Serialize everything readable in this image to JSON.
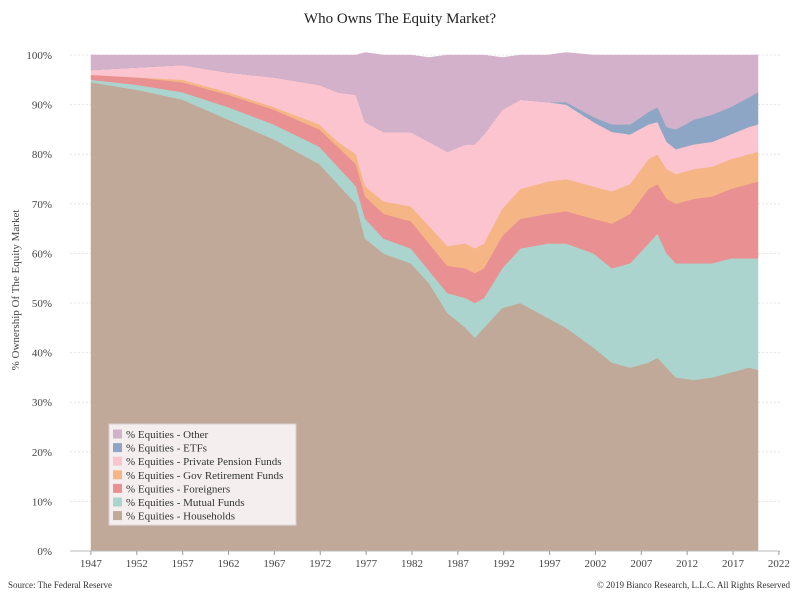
{
  "chart_data": {
    "type": "area",
    "stacked": true,
    "title": "Who Owns The Equity Market?",
    "ylabel": "% Ownership Of The Equity Market",
    "xlabel": "",
    "xlim": [
      1945,
      2022
    ],
    "ylim": [
      0,
      100
    ],
    "x_ticks": [
      "1947",
      "1952",
      "1957",
      "1962",
      "1967",
      "1972",
      "1977",
      "1982",
      "1987",
      "1992",
      "1997",
      "2002",
      "2007",
      "2012",
      "2017",
      "2022"
    ],
    "y_ticks": [
      "0%",
      "10%",
      "20%",
      "30%",
      "40%",
      "50%",
      "60%",
      "70%",
      "80%",
      "90%",
      "100%"
    ],
    "grid": "horizontal",
    "legend_position": "bottom-left",
    "x": [
      1945,
      1950,
      1955,
      1960,
      1965,
      1970,
      1972,
      1974,
      1975,
      1977,
      1980,
      1982,
      1984,
      1986,
      1987,
      1988,
      1990,
      1992,
      1995,
      1997,
      2000,
      2002,
      2004,
      2006,
      2007,
      2008,
      2009,
      2011,
      2013,
      2015,
      2017,
      2018
    ],
    "series": [
      {
        "name": "% Equities - Households",
        "color": "#c1a999",
        "values": [
          94.5,
          93,
          91,
          87,
          83,
          78,
          74,
          70,
          63,
          60,
          58,
          54,
          48,
          45,
          43,
          45,
          49,
          50,
          47,
          45,
          41,
          38,
          37,
          38,
          39,
          37,
          35,
          34.5,
          35,
          36,
          37,
          36.5
        ]
      },
      {
        "name": "% Equities - Mutual Funds",
        "color": "#acd4cf",
        "values": [
          0.5,
          1,
          1.5,
          2.5,
          3,
          3.5,
          3.5,
          3.5,
          4,
          3,
          3,
          2.5,
          4,
          6,
          7,
          6,
          8,
          11,
          15,
          17,
          19,
          19,
          21,
          24,
          25,
          23,
          23,
          23.5,
          23,
          23,
          22,
          22.5
        ]
      },
      {
        "name": "% Equities - Foreigners",
        "color": "#e99092",
        "values": [
          1,
          1.5,
          2,
          2.5,
          3,
          3.5,
          4,
          4.5,
          4.5,
          5,
          5.5,
          5.5,
          5.5,
          6,
          6,
          6,
          6.5,
          6,
          6,
          6.5,
          7,
          9,
          10,
          11,
          10,
          11,
          12,
          13,
          13.5,
          14,
          15,
          15.5
        ]
      },
      {
        "name": "% Equities - Gov Retirement Funds",
        "color": "#f5b584",
        "values": [
          0,
          0,
          0.5,
          0.5,
          0.5,
          1,
          1,
          2,
          2,
          2.5,
          3,
          3.5,
          4,
          5,
          5,
          5,
          5.5,
          6,
          6.5,
          6.5,
          6.5,
          6.5,
          6,
          6,
          6,
          6,
          6,
          6,
          6,
          6,
          6,
          6
        ]
      },
      {
        "name": "% Equities - Private Pension Funds",
        "color": "#fbc4ce",
        "values": [
          1,
          2,
          3,
          4,
          6,
          8,
          10,
          12,
          13,
          14,
          15,
          17,
          19,
          20,
          21,
          22,
          20,
          18,
          16,
          15,
          13,
          12,
          10,
          7,
          6.5,
          5.5,
          5,
          5,
          5,
          5,
          5.5,
          5.5
        ]
      },
      {
        "name": "% Equities - ETFs",
        "color": "#8ea6c6",
        "values": [
          0,
          0,
          0,
          0,
          0,
          0,
          0,
          0,
          0,
          0,
          0,
          0,
          0,
          0,
          0,
          0,
          0,
          0,
          0,
          0.5,
          1,
          1.5,
          2,
          2.5,
          3,
          3,
          4,
          5,
          5.5,
          5.5,
          6,
          6.5
        ]
      },
      {
        "name": "% Equities - Other",
        "color": "#d3b1cb",
        "values": [
          3,
          2.5,
          2,
          3.5,
          4.5,
          6,
          7.5,
          8,
          14,
          15.5,
          15.5,
          17,
          19.5,
          18,
          18,
          16,
          10.5,
          9,
          9.5,
          10,
          12.5,
          14,
          14,
          11.5,
          10.5,
          14.5,
          15,
          13,
          12,
          10.5,
          8.5,
          7.5
        ]
      }
    ]
  },
  "footer": {
    "source": "Source: The Federal Reserve",
    "copyright": "© 2019 Bianco Research, L.L.C. All Rights Reserved"
  }
}
